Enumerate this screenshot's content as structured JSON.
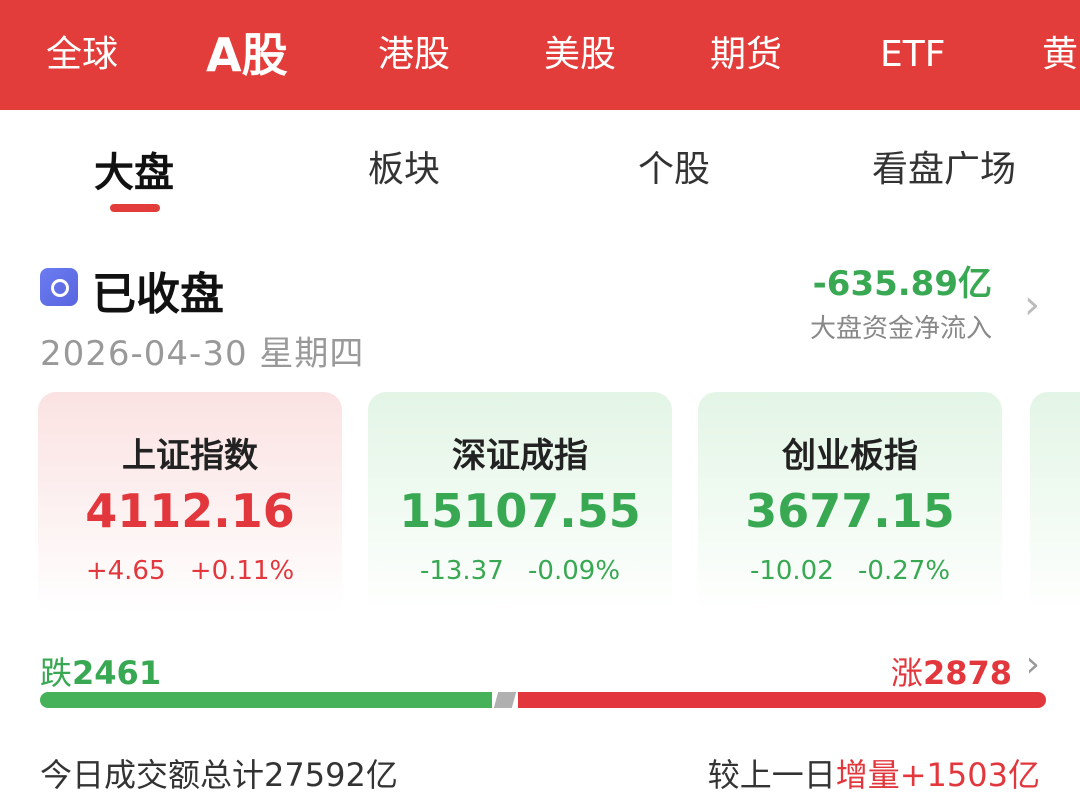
{
  "top_nav": {
    "tabs": [
      {
        "label": "全球",
        "active": false
      },
      {
        "label": "A股",
        "active": true
      },
      {
        "label": "港股",
        "active": false
      },
      {
        "label": "美股",
        "active": false
      },
      {
        "label": "期货",
        "active": false
      },
      {
        "label": "ETF",
        "active": false
      },
      {
        "label": "黄",
        "active": false
      }
    ]
  },
  "sub_nav": {
    "tabs": [
      {
        "label": "大盘",
        "active": true
      },
      {
        "label": "板块",
        "active": false
      },
      {
        "label": "个股",
        "active": false
      },
      {
        "label": "看盘广场",
        "active": false
      }
    ]
  },
  "status": {
    "icon": "market-status-icon",
    "title": "已收盘",
    "date": "2026-04-30",
    "weekday": "星期四"
  },
  "fund_flow": {
    "value": "-635.89亿",
    "label": "大盘资金净流入"
  },
  "indices": [
    {
      "name": "上证指数",
      "value": "4112.16",
      "change": "+4.65",
      "pct": "+0.11%",
      "trend": "up"
    },
    {
      "name": "深证成指",
      "value": "15107.55",
      "change": "-13.37",
      "pct": "-0.09%",
      "trend": "down"
    },
    {
      "name": "创业板指",
      "value": "3677.15",
      "change": "-10.02",
      "pct": "-0.27%",
      "trend": "down"
    }
  ],
  "breadth": {
    "fall_label": "跌",
    "fall_count": 2461,
    "rise_label": "涨",
    "rise_count": 2878
  },
  "turnover": {
    "label": "今日成交额总计",
    "value": "27592亿",
    "compare_label": "较上一日",
    "compare_type": "增量",
    "compare_value": "+1503亿"
  },
  "colors": {
    "brand_red": "#e23d3a",
    "up": "#e2383d",
    "down": "#38a853"
  }
}
